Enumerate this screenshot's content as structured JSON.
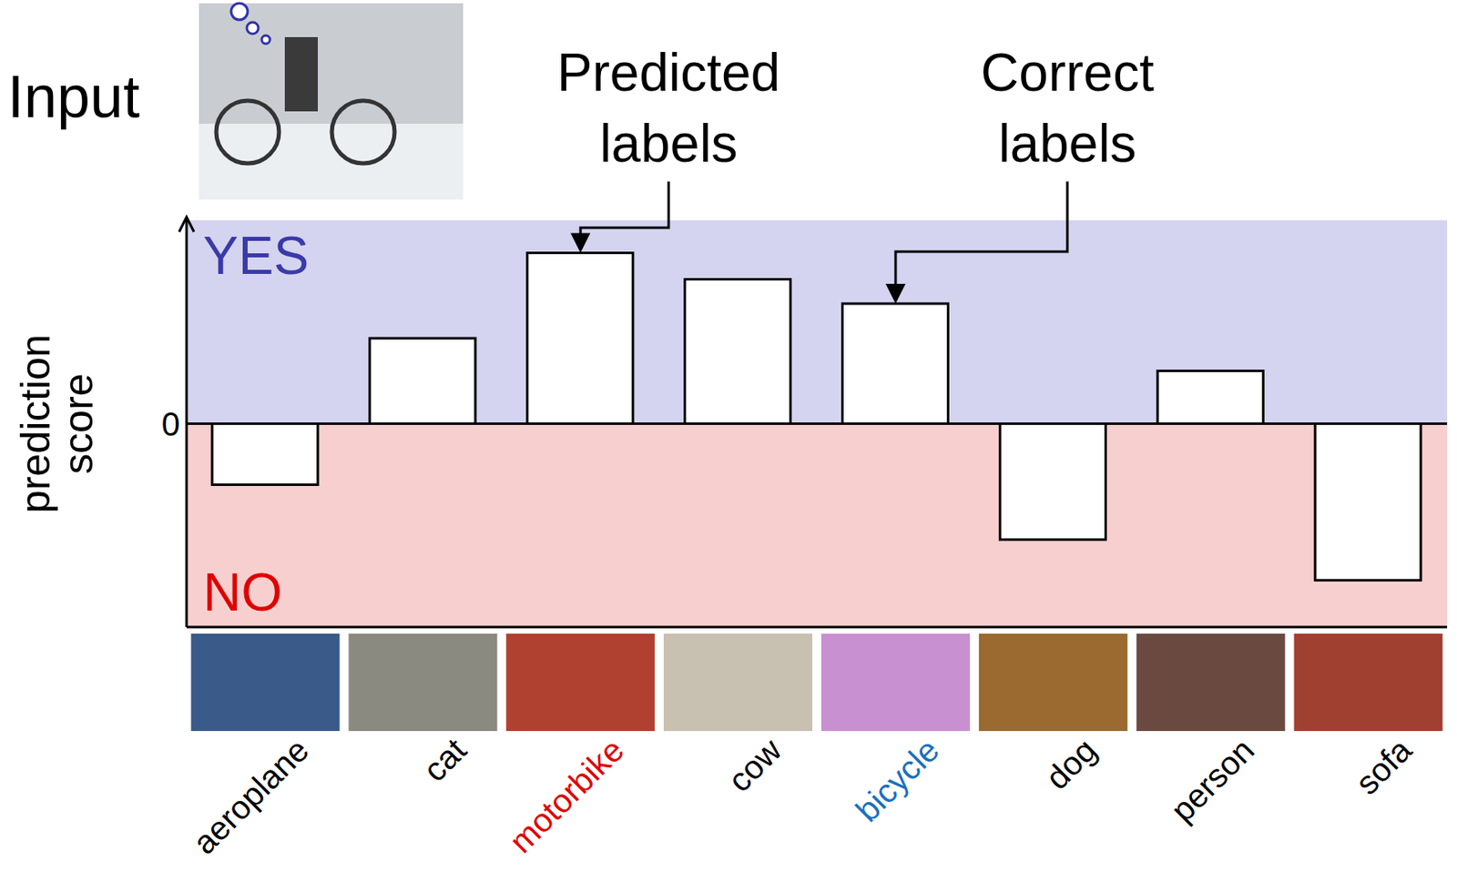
{
  "chart_data": {
    "type": "bar",
    "categories": [
      "aeroplane",
      "cat",
      "motorbike",
      "cow",
      "bicycle",
      "dog",
      "person",
      "sofa"
    ],
    "values": [
      -0.3,
      0.42,
      0.84,
      0.71,
      0.59,
      -0.57,
      0.26,
      -0.77
    ],
    "color": "#ffffff",
    "ylim": [
      -1,
      1
    ],
    "yticks": [
      0
    ],
    "grid": false,
    "y_label": "prediction score",
    "region_labels": {
      "positive": "YES",
      "negative": "NO"
    },
    "annotations": [
      {
        "text": "Predicted labels",
        "category": "motorbike"
      },
      {
        "text": "Correct labels",
        "category": "bicycle"
      }
    ],
    "input_label": "Input"
  }
}
